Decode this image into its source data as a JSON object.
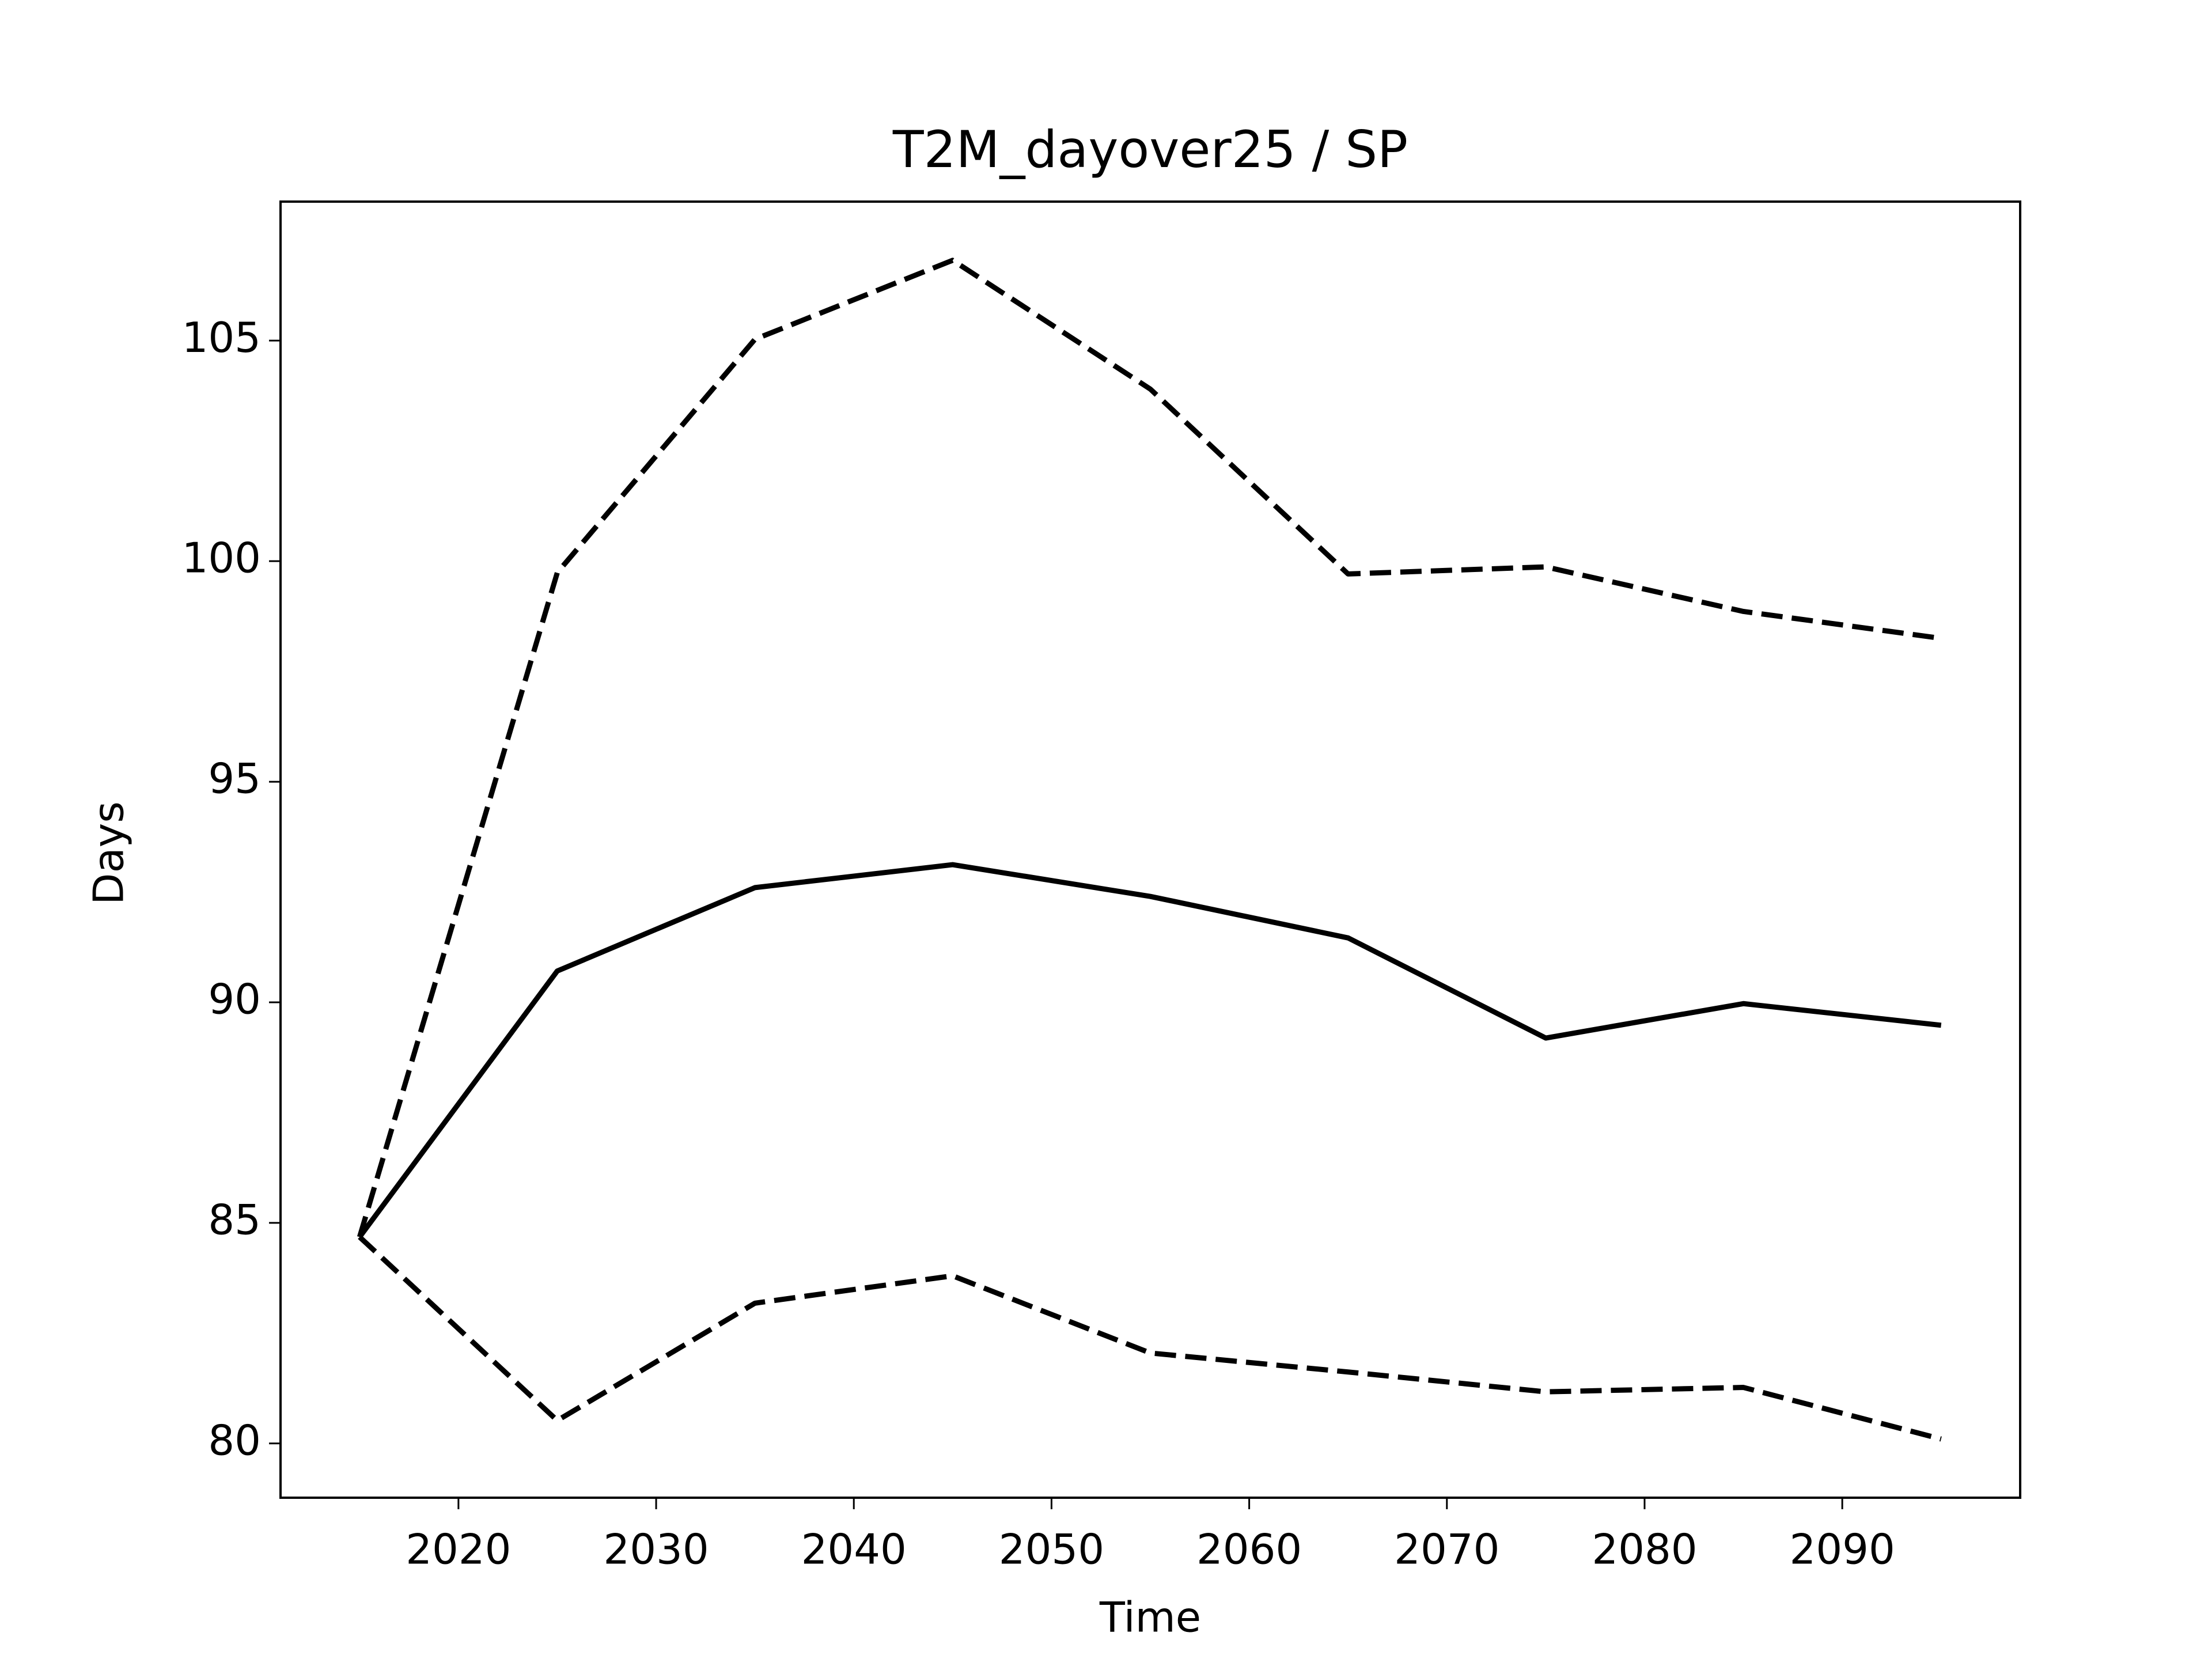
{
  "chart_data": {
    "type": "line",
    "title": "T2M_dayover25 / SP",
    "x_label": "Time",
    "y_label": "Days",
    "x": [
      2015,
      2025,
      2035,
      2045,
      2055,
      2065,
      2075,
      2085,
      2095
    ],
    "series": [
      {
        "color": "#000000",
        "linestyle": "solid",
        "values": [
          84.68,
          90.71,
          92.6,
          93.12,
          92.4,
          91.46,
          89.19,
          89.97,
          89.48
        ]
      },
      {
        "color": "#000000",
        "linestyle": "dashed",
        "values": [
          84.68,
          99.74,
          105.03,
          106.82,
          103.9,
          99.71,
          99.87,
          98.86,
          98.25
        ]
      },
      {
        "color": "#000000",
        "linestyle": "dashed",
        "values": [
          84.68,
          80.52,
          83.18,
          83.8,
          82.05,
          81.62,
          81.17,
          81.27,
          80.1
        ]
      }
    ],
    "xlim": [
      2011,
      2099
    ],
    "xticks": [
      2020,
      2030,
      2040,
      2050,
      2060,
      2070,
      2080,
      2090
    ],
    "ylim": [
      78.77,
      108.15
    ],
    "yticks": [
      80,
      85,
      90,
      95,
      100,
      105
    ],
    "grid": false
  }
}
